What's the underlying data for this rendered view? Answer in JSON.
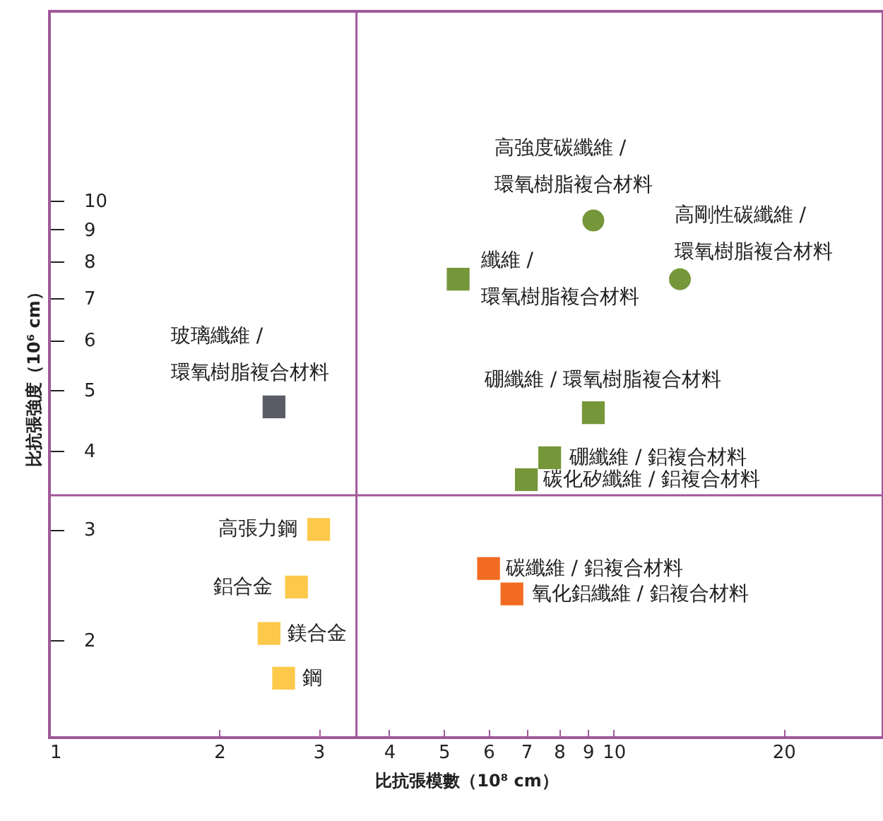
{
  "chart_data": {
    "type": "scatter",
    "xlabel": "比抗張模數（10⁸ cm）",
    "ylabel": "比抗張強度（10⁶ cm）",
    "log": "xy",
    "xlim": [
      1,
      30
    ],
    "ylim": [
      1.4,
      20
    ],
    "xticks": [
      1,
      2,
      3,
      4,
      5,
      6,
      7,
      8,
      9,
      10,
      20
    ],
    "yticks": [
      2,
      3,
      4,
      5,
      6,
      7,
      8,
      9,
      10
    ],
    "ref_lines": [
      {
        "axis": "x",
        "value": 3.5,
        "color": "#a0599a"
      },
      {
        "axis": "y",
        "value": 3.4,
        "color": "#a0599a"
      }
    ],
    "series": [
      {
        "name": "玻璃纖維 / 環氧樹脂複合材料",
        "color": "#5b5d66",
        "marker": "square",
        "x": [
          2.5
        ],
        "values": [
          4.7
        ]
      },
      {
        "name": "高強度碳纖維 / 環氧樹脂複合材料",
        "color": "#76963a",
        "marker": "circle",
        "x": [
          9.2
        ],
        "values": [
          9.3
        ]
      },
      {
        "name": "高剛性碳纖維 / 環氧樹脂複合材料",
        "color": "#76963a",
        "marker": "circle",
        "x": [
          13.1
        ],
        "values": [
          7.5
        ]
      },
      {
        "name": "纖維 / 環氧樹脂複合材料",
        "color": "#76963a",
        "marker": "square",
        "x": [
          5.3
        ],
        "values": [
          7.5
        ]
      },
      {
        "name": "硼纖維 / 環氧樹脂複合材料",
        "color": "#76963a",
        "marker": "square",
        "x": [
          9.2
        ],
        "values": [
          4.6
        ]
      },
      {
        "name": "硼纖維 / 鋁複合材料",
        "color": "#76963a",
        "marker": "square",
        "x": [
          7.7
        ],
        "values": [
          3.9
        ]
      },
      {
        "name": "碳化矽纖維 / 鋁複合材料",
        "color": "#76963a",
        "marker": "square",
        "x": [
          7.0
        ],
        "values": [
          3.6
        ]
      },
      {
        "name": "高張力鋼",
        "color": "#fdc94a",
        "marker": "square",
        "x": [
          3.0
        ],
        "values": [
          3.0
        ]
      },
      {
        "name": "鋁合金",
        "color": "#fdc94a",
        "marker": "square",
        "x": [
          2.74
        ],
        "values": [
          2.43
        ]
      },
      {
        "name": "鎂合金",
        "color": "#fdc94a",
        "marker": "square",
        "x": [
          2.45
        ],
        "values": [
          2.05
        ]
      },
      {
        "name": "鋼",
        "color": "#fdc94a",
        "marker": "square",
        "x": [
          2.6
        ],
        "values": [
          1.74
        ]
      },
      {
        "name": "碳纖維 / 鋁複合材料",
        "color": "#f26b22",
        "marker": "square",
        "x": [
          6.0
        ],
        "values": [
          2.6
        ]
      },
      {
        "name": "氧化鋁纖維 / 鋁複合材料",
        "color": "#f26b22",
        "marker": "square",
        "x": [
          6.6
        ],
        "values": [
          2.37
        ]
      }
    ]
  }
}
